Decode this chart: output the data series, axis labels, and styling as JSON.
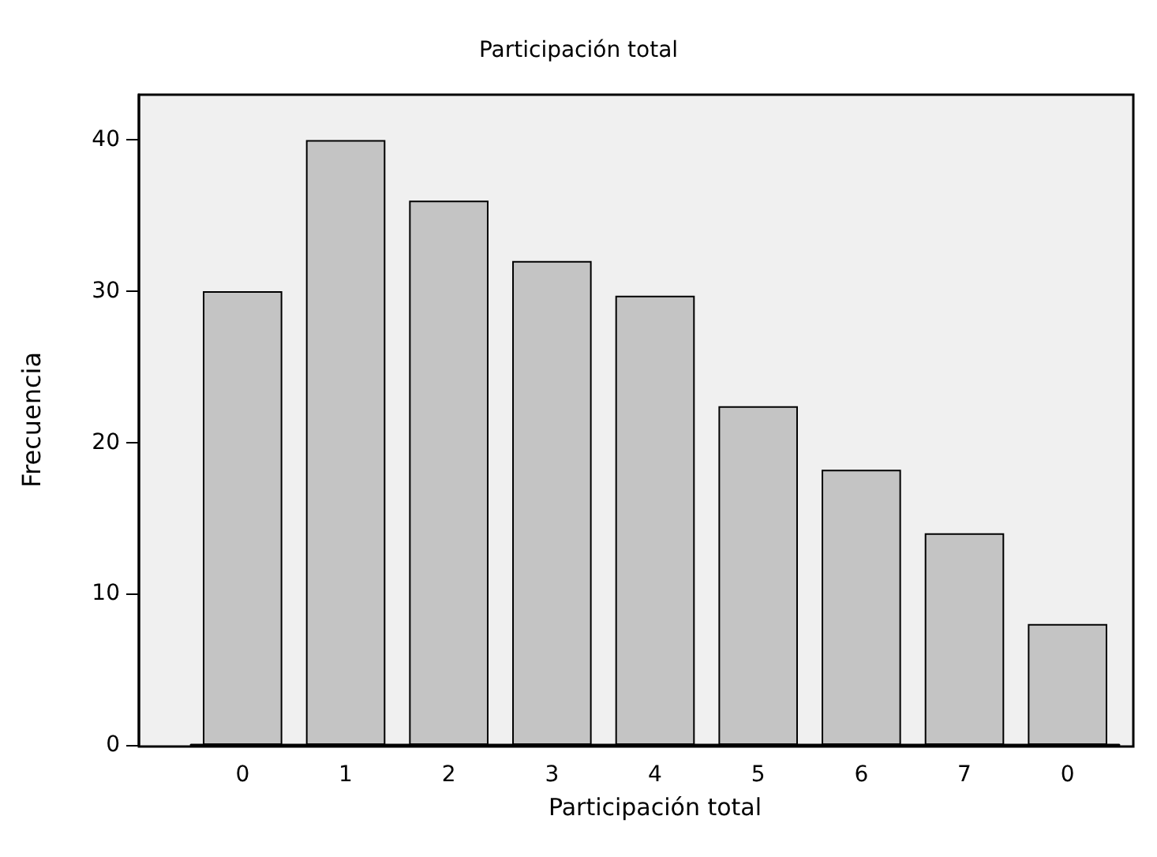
{
  "chart_data": {
    "type": "bar",
    "title": "Participación total",
    "xlabel": "Participación total",
    "ylabel": "Frecuencia",
    "categories": [
      "0",
      "1",
      "2",
      "3",
      "4",
      "5",
      "6",
      "7",
      "0"
    ],
    "values": [
      30,
      40,
      36,
      32,
      29.7,
      22.4,
      18.2,
      14,
      8
    ],
    "color": "#c4c4c4",
    "ylim": [
      0,
      43
    ],
    "yticks": [
      0,
      10,
      20,
      30,
      40
    ],
    "grid": false
  }
}
